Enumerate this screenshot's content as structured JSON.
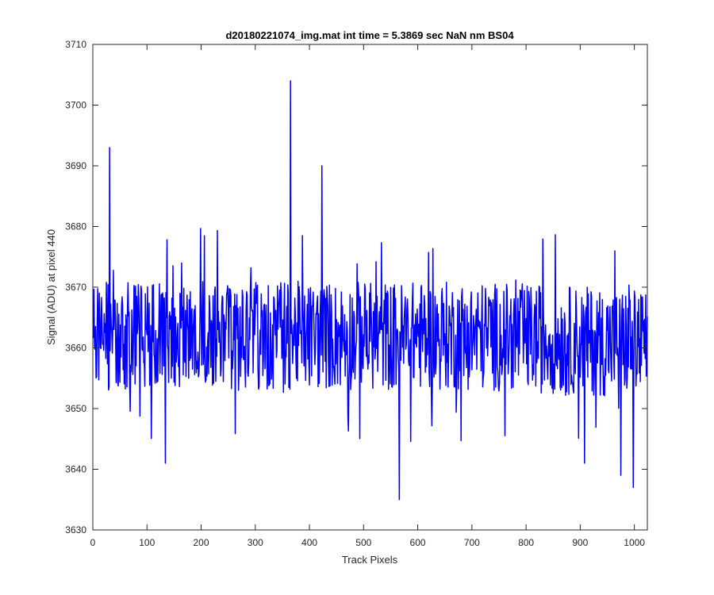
{
  "chart_data": {
    "type": "line",
    "title": "d20180221074_img.mat int time = 5.3869 sec  NaN nm BS04",
    "xlabel": "Track Pixels",
    "ylabel": "Signal (ADU) at pixel 440",
    "xlim": [
      0,
      1024
    ],
    "ylim": [
      3630,
      3710
    ],
    "xticks": [
      0,
      100,
      200,
      300,
      400,
      500,
      600,
      700,
      800,
      900,
      1000
    ],
    "yticks": [
      3630,
      3640,
      3650,
      3660,
      3670,
      3680,
      3690,
      3700,
      3710
    ],
    "grid": false,
    "legend": "none",
    "series": [
      {
        "color": "#0000ff",
        "x_range": [
          1,
          1024
        ],
        "notes_visible": "noisy signal around 3662 ADU, approx range 3643-3685",
        "peaks": [
          {
            "x": 31,
            "y": 3693
          },
          {
            "x": 365,
            "y": 3704
          },
          {
            "x": 423,
            "y": 3690
          },
          {
            "x": 566,
            "y": 3635
          },
          {
            "x": 134,
            "y": 3641
          },
          {
            "x": 998,
            "y": 3637
          },
          {
            "x": 975,
            "y": 3639
          },
          {
            "x": 908,
            "y": 3641
          }
        ]
      }
    ]
  }
}
